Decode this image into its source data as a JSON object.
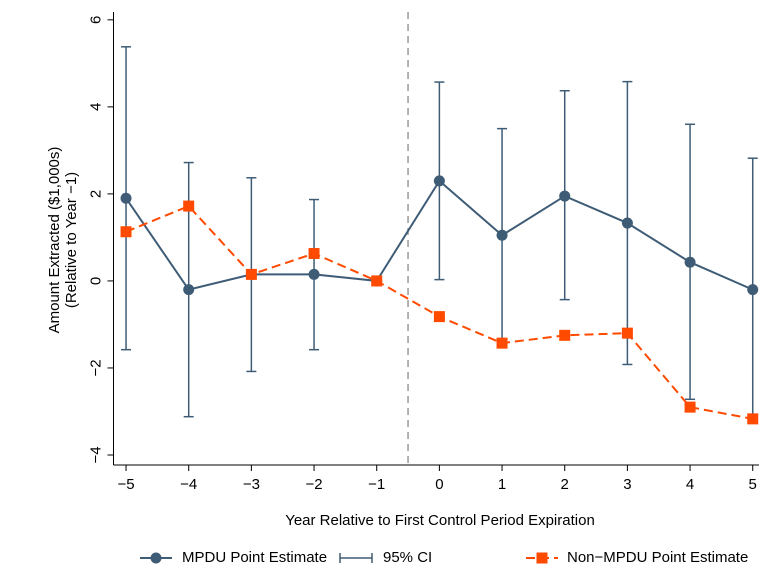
{
  "chart_data": {
    "type": "line",
    "x_label": "Year Relative to First Control Period Expiration",
    "y_label": [
      "Amount Extracted ($1,000s)",
      "(Relative to Year −1)"
    ],
    "x": [
      -5,
      -4,
      -3,
      -2,
      -1,
      0,
      1,
      2,
      3,
      4,
      5
    ],
    "series": [
      {
        "name": "MPDU Point Estimate",
        "color": "#3e5c76",
        "values": [
          1.9,
          -0.2,
          0.15,
          0.15,
          0,
          2.3,
          1.05,
          1.95,
          1.33,
          0.43,
          -0.2
        ]
      },
      {
        "name": "95% CI",
        "color": "#3e5c76",
        "lower": [
          -1.58,
          -3.12,
          -2.08,
          -1.58,
          null,
          0.03,
          -1.45,
          -0.43,
          -1.92,
          -2.72,
          -3.17
        ],
        "upper": [
          5.38,
          2.72,
          2.37,
          1.87,
          null,
          4.57,
          3.5,
          4.37,
          4.58,
          3.6,
          2.82
        ]
      },
      {
        "name": "Non−MPDU Point Estimate",
        "color": "#ff4a00",
        "values": [
          1.13,
          1.72,
          0.15,
          0.63,
          0,
          -0.82,
          -1.43,
          -1.25,
          -1.2,
          -2.9,
          -3.17
        ]
      }
    ],
    "vline": -0.5,
    "xlim": [
      -5.2,
      5.1
    ],
    "ylim": [
      -4.23,
      6.18
    ],
    "xticks": [
      {
        "value": -5,
        "label": "−5"
      },
      {
        "value": -4,
        "label": "−4"
      },
      {
        "value": -3,
        "label": "−3"
      },
      {
        "value": -2,
        "label": "−2"
      },
      {
        "value": -1,
        "label": "−1"
      },
      0,
      1,
      2,
      3,
      4,
      5
    ],
    "yticks": [
      {
        "value": -4,
        "label": "−4"
      },
      {
        "value": -2,
        "label": "−2"
      },
      0,
      2,
      4,
      6
    ],
    "legend": "bottom"
  }
}
